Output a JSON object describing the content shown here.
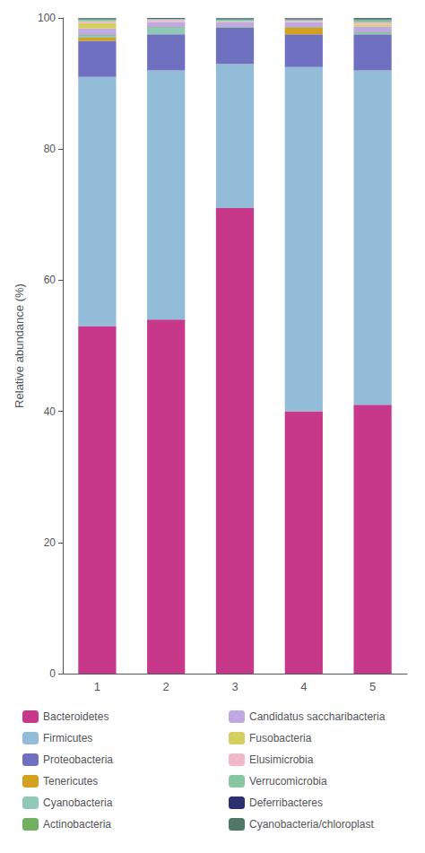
{
  "chart_data": {
    "type": "bar",
    "stacked": true,
    "grid": false,
    "ylabel": "Relative abundance (%)",
    "categories": [
      "1",
      "2",
      "3",
      "4",
      "5"
    ],
    "series": [
      {
        "name": "Bacteroidetes",
        "color": "#c8388a",
        "values": [
          53.0,
          54.0,
          71.0,
          40.0,
          41.0
        ]
      },
      {
        "name": "Firmicutes",
        "color": "#92bcd8",
        "values": [
          38.0,
          38.0,
          22.0,
          52.5,
          51.0
        ]
      },
      {
        "name": "Proteobacteria",
        "color": "#7070c0",
        "values": [
          5.5,
          5.5,
          5.5,
          5.0,
          5.5
        ]
      },
      {
        "name": "Tenericutes",
        "color": "#d4a020",
        "values": [
          0.5,
          0.0,
          0.0,
          1.0,
          0.0
        ]
      },
      {
        "name": "Cyanobacteria",
        "color": "#90c8b8",
        "values": [
          0.3,
          1.0,
          0.0,
          0.0,
          0.2
        ]
      },
      {
        "name": "Actinobacteria",
        "color": "#70b060",
        "values": [
          0.1,
          0.1,
          0.1,
          0.1,
          0.1
        ]
      },
      {
        "name": "Candidatus saccharibacteria",
        "color": "#c0a8e0",
        "values": [
          1.0,
          0.8,
          0.8,
          0.8,
          0.9
        ]
      },
      {
        "name": "Fusobacteria",
        "color": "#d4d060",
        "values": [
          0.8,
          0.0,
          0.0,
          0.0,
          0.3
        ]
      },
      {
        "name": "Elusimicrobia",
        "color": "#f0b8c8",
        "values": [
          0.3,
          0.3,
          0.1,
          0.2,
          0.3
        ]
      },
      {
        "name": "Verrucomicrobia",
        "color": "#88c8a0",
        "values": [
          0.3,
          0.2,
          0.3,
          0.2,
          0.4
        ]
      },
      {
        "name": "Deferribacteres",
        "color": "#2c3070",
        "values": [
          0.1,
          0.1,
          0.1,
          0.1,
          0.1
        ]
      },
      {
        "name": "Cyanobacteria/chloroplast",
        "color": "#507868",
        "values": [
          0.1,
          0.0,
          0.1,
          0.1,
          0.2
        ]
      }
    ],
    "ylim": [
      0,
      100
    ],
    "yticks": [
      0,
      20,
      40,
      60,
      80,
      100
    ]
  }
}
